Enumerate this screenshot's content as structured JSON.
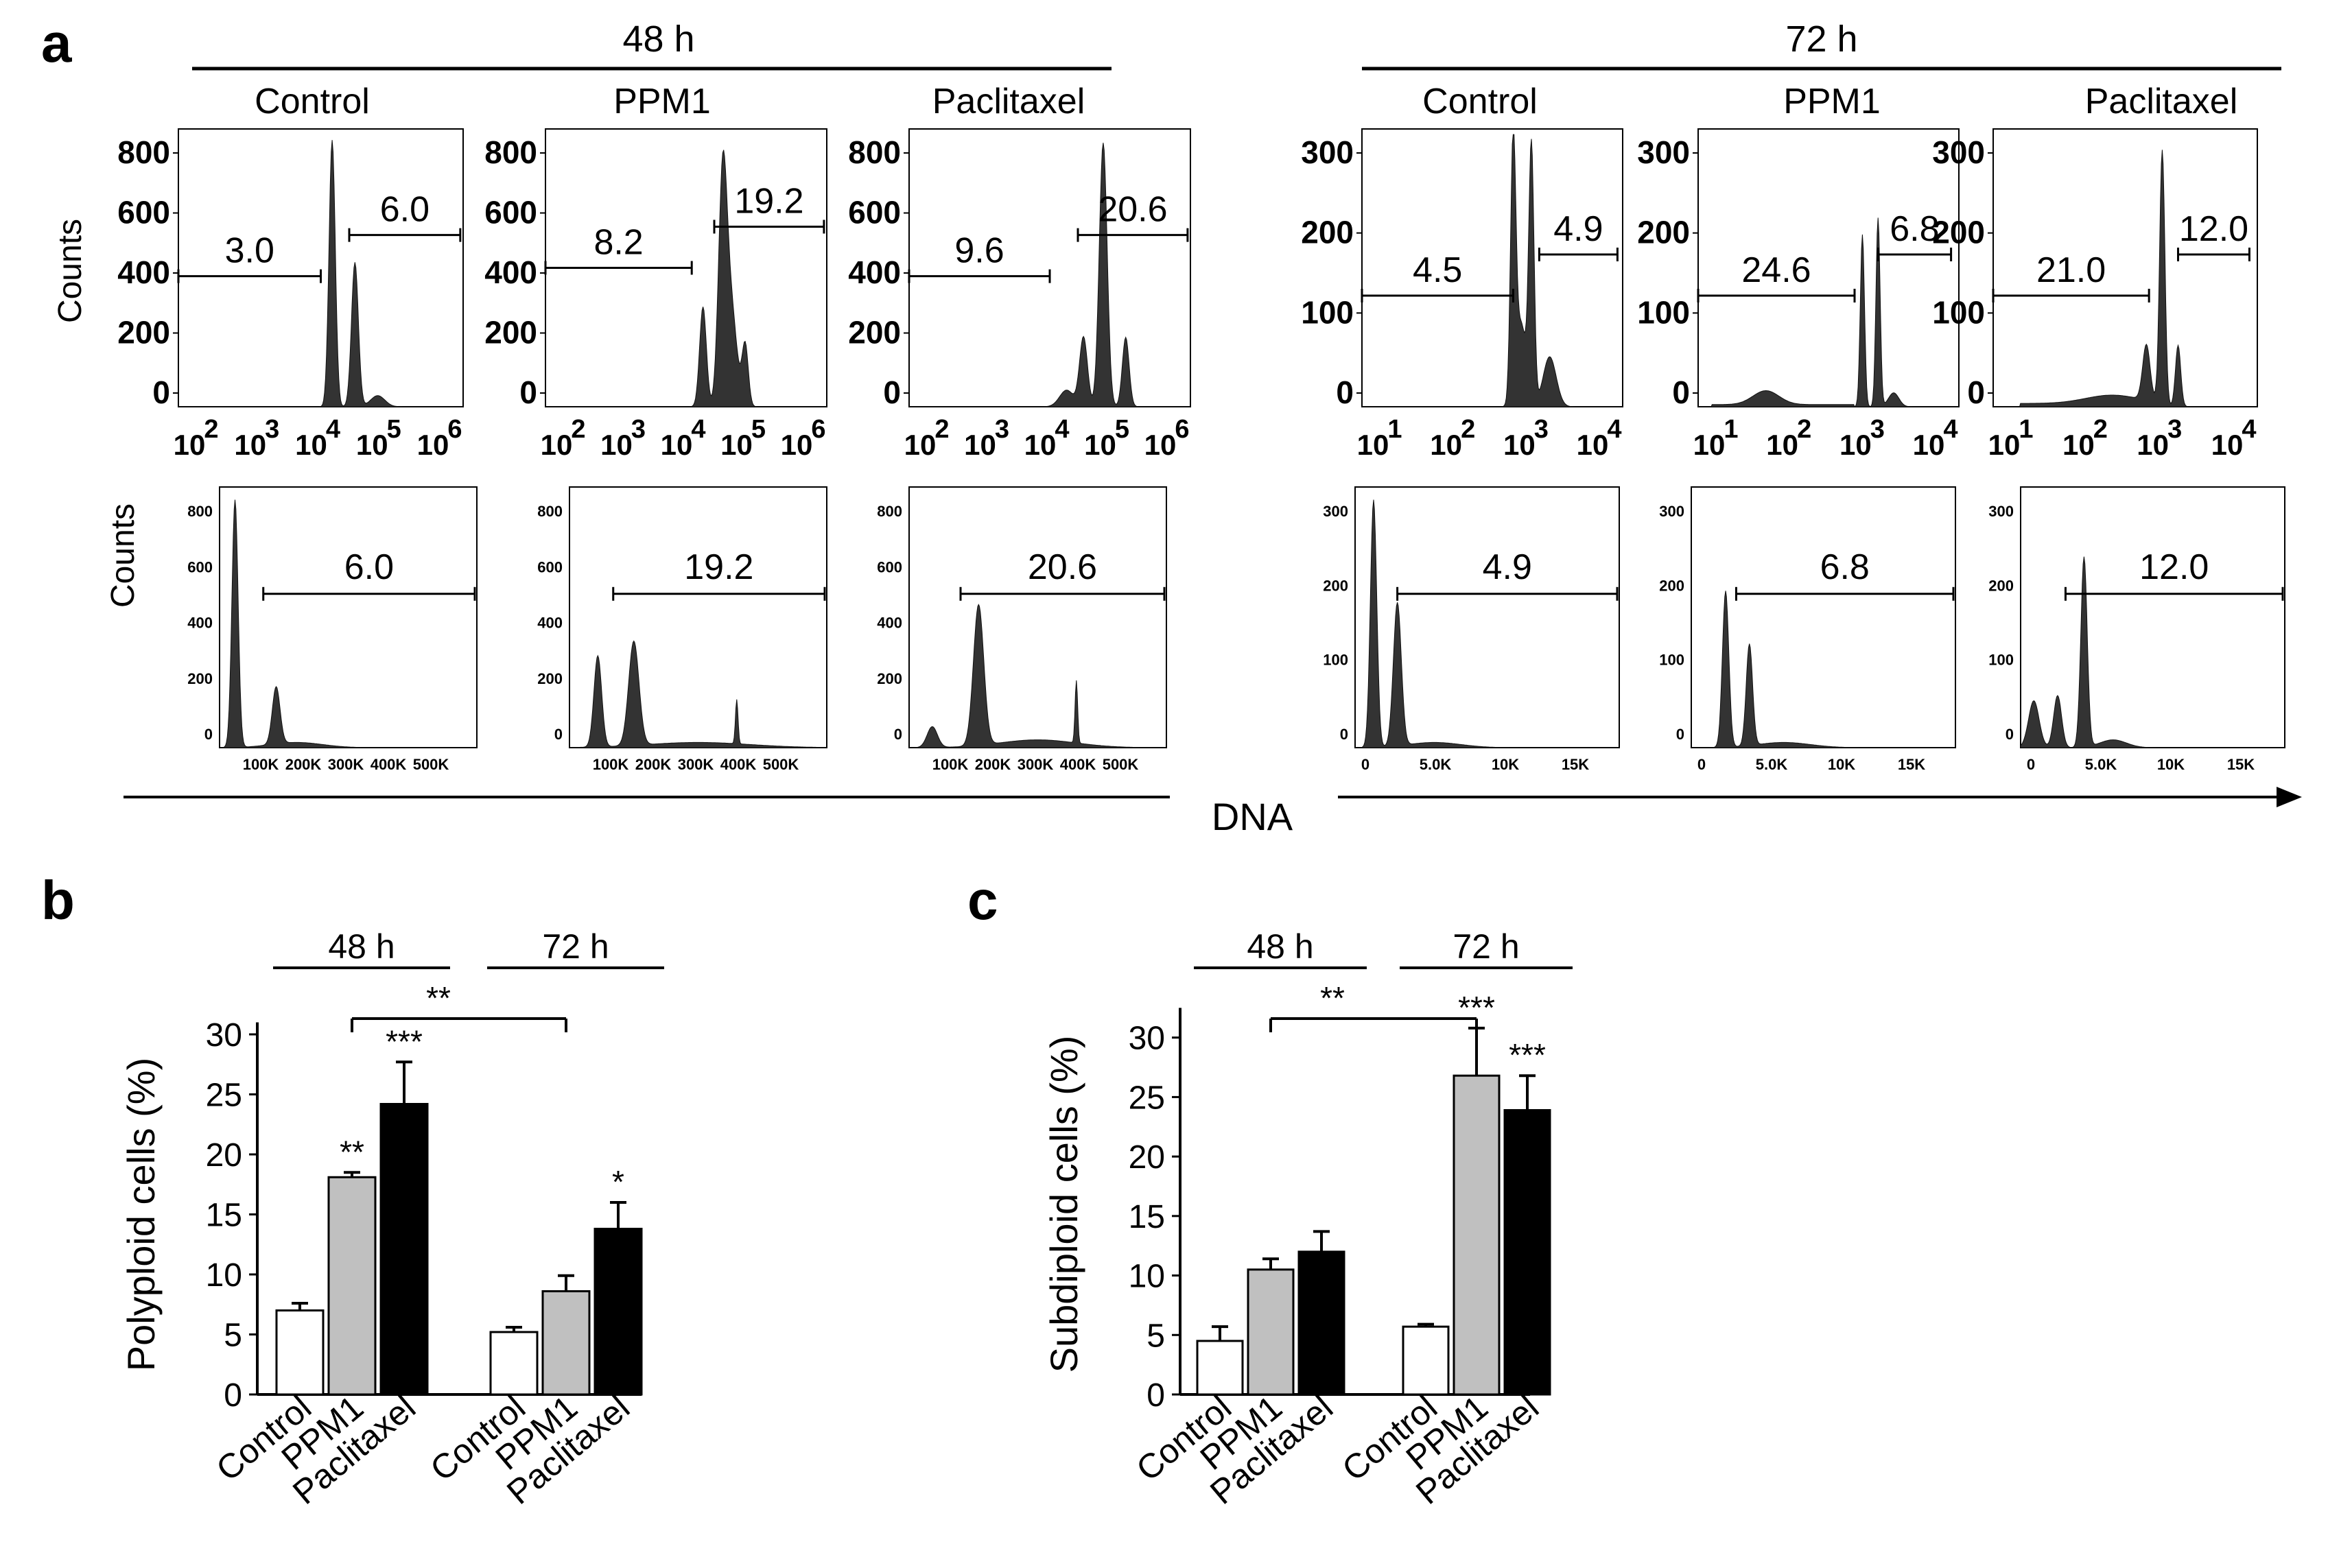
{
  "panel_labels": {
    "a": "a",
    "b": "b",
    "c": "c"
  },
  "panel_a": {
    "timepoints": [
      "48 h",
      "72 h"
    ],
    "axis_x_label": "DNA",
    "axis_y_label": "Counts",
    "conditions": [
      "Control",
      "PPM1",
      "Paclitaxel"
    ],
    "log_ticks_48": [
      "2",
      "3",
      "4",
      "5",
      "6"
    ],
    "log_ticks_72": [
      "1",
      "2",
      "3",
      "4"
    ],
    "lin_yticks_48": [
      "0",
      "200",
      "400",
      "600",
      "800"
    ],
    "lin_yticks_72": [
      "0",
      "100",
      "200",
      "300"
    ],
    "lin_xticks_48": [
      "100K",
      "200K",
      "300K",
      "400K",
      "500K"
    ],
    "lin_xticks_72": [
      "0",
      "5.0K",
      "10K",
      "15K"
    ],
    "histograms": [
      {
        "time": "48 h",
        "condition": "Control",
        "log_left_gate": "3.0",
        "log_right_gate": "6.0",
        "lin_gate": "6.0"
      },
      {
        "time": "48 h",
        "condition": "PPM1",
        "log_left_gate": "8.2",
        "log_right_gate": "19.2",
        "lin_gate": "19.2"
      },
      {
        "time": "48 h",
        "condition": "Paclitaxel",
        "log_left_gate": "9.6",
        "log_right_gate": "20.6",
        "lin_gate": "20.6"
      },
      {
        "time": "72 h",
        "condition": "Control",
        "log_left_gate": "4.5",
        "log_right_gate": "4.9",
        "lin_gate": "4.9"
      },
      {
        "time": "72 h",
        "condition": "PPM1",
        "log_left_gate": "24.6",
        "log_right_gate": "6.8",
        "lin_gate": "6.8"
      },
      {
        "time": "72 h",
        "condition": "Paclitaxel",
        "log_left_gate": "21.0",
        "log_right_gate": "12.0",
        "lin_gate": "12.0"
      }
    ]
  },
  "chart_data": [
    {
      "panel": "b",
      "type": "bar",
      "groups": [
        "48 h",
        "72 h"
      ],
      "categories": [
        "Control",
        "PPM1",
        "Paclitaxel"
      ],
      "series": [
        {
          "name": "48 h",
          "values": [
            7.0,
            18.1,
            24.2
          ],
          "errors": [
            0.6,
            0.4,
            3.5
          ],
          "significance": [
            "",
            "**",
            "***"
          ]
        },
        {
          "name": "72 h",
          "values": [
            5.2,
            8.6,
            13.8
          ],
          "errors": [
            0.4,
            1.3,
            2.2
          ],
          "significance": [
            "",
            "",
            "*"
          ]
        }
      ],
      "colors": [
        "#ffffff",
        "#c0c0c0",
        "#000000"
      ],
      "ylabel": "Polyploid cells (%)",
      "ylim": [
        0,
        30
      ],
      "yticks": [
        0,
        5,
        10,
        15,
        20,
        25,
        30
      ],
      "bracket": {
        "label": "**",
        "from": "48 h PPM1",
        "to": "72 h PPM1"
      }
    },
    {
      "panel": "c",
      "type": "bar",
      "groups": [
        "48 h",
        "72 h"
      ],
      "categories": [
        "Control",
        "PPM1",
        "Paclitaxel"
      ],
      "series": [
        {
          "name": "48 h",
          "values": [
            4.5,
            10.5,
            12.0
          ],
          "errors": [
            1.2,
            0.9,
            1.7
          ],
          "significance": [
            "",
            "",
            ""
          ]
        },
        {
          "name": "72 h",
          "values": [
            5.7,
            26.8,
            23.9
          ],
          "errors": [
            0.2,
            4.0,
            2.9
          ],
          "significance": [
            "",
            "***",
            "***"
          ]
        }
      ],
      "colors": [
        "#ffffff",
        "#c0c0c0",
        "#000000"
      ],
      "ylabel": "Subdiploid cells (%)",
      "ylim": [
        0,
        32
      ],
      "yticks": [
        0,
        5,
        10,
        15,
        20,
        25,
        30
      ],
      "bracket": {
        "label": "**",
        "from": "48 h PPM1",
        "to": "72 h PPM1"
      }
    }
  ]
}
